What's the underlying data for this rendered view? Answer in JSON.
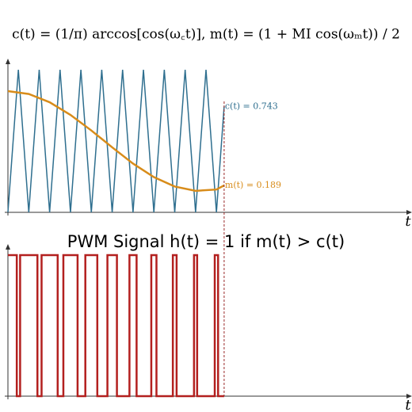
{
  "chart_data": [
    {
      "type": "line",
      "title": "c(t) = (1/π) arccos[cos(ω꜀t)], m(t) = (1 + MI cos(ωₘt)) / 2",
      "xlabel": "t",
      "xlim": [
        0,
        19
      ],
      "ylim": [
        0,
        1
      ],
      "series": [
        {
          "name": "c(t)",
          "color": "#2f6f8f",
          "end_label": "c(t) = 0.743",
          "x": [
            0,
            0.5,
            1,
            1.5,
            2,
            2.5,
            3,
            3.5,
            4,
            4.5,
            5,
            5.5,
            6,
            6.5,
            7,
            7.5,
            8,
            8.5,
            9,
            9.5,
            10,
            10.37
          ],
          "values": [
            0,
            1,
            0,
            1,
            0,
            1,
            0,
            1,
            0,
            1,
            0,
            1,
            0,
            1,
            0,
            1,
            0,
            1,
            0,
            1,
            0,
            0.743
          ]
        },
        {
          "name": "m(t)",
          "color": "#d88c1a",
          "end_label": "m(t) = 0.189",
          "x": [
            0,
            1,
            2,
            3,
            4,
            5,
            6,
            7,
            8,
            9,
            10,
            10.37
          ],
          "values": [
            0.85,
            0.83,
            0.772,
            0.683,
            0.574,
            0.456,
            0.342,
            0.247,
            0.181,
            0.151,
            0.16,
            0.189
          ]
        }
      ]
    },
    {
      "type": "step",
      "title": "PWM Signal h(t) = 1 if m(t) > c(t)",
      "xlabel": "t",
      "xlim": [
        0,
        19
      ],
      "ylim": [
        0,
        1
      ],
      "series": [
        {
          "name": "h(t)",
          "color": "#b3201f",
          "x": [
            0,
            0.425,
            0.425,
            0.585,
            0.585,
            1.415,
            1.415,
            1.614,
            1.614,
            2.386,
            2.386,
            2.659,
            2.659,
            3.341,
            3.341,
            3.713,
            3.713,
            4.287,
            4.287,
            4.772,
            4.772,
            5.228,
            5.228,
            5.829,
            5.829,
            6.171,
            6.171,
            6.876,
            6.876,
            7.124,
            7.124,
            7.91,
            7.91,
            8.09,
            8.09,
            8.925,
            8.925,
            9.075,
            9.075,
            9.92,
            9.92,
            10.08,
            10.08,
            10.37
          ],
          "values": [
            1,
            1,
            0,
            0,
            1,
            1,
            0,
            0,
            1,
            1,
            0,
            0,
            1,
            1,
            0,
            0,
            1,
            1,
            0,
            0,
            1,
            1,
            0,
            0,
            1,
            1,
            0,
            0,
            1,
            1,
            0,
            0,
            1,
            1,
            0,
            0,
            1,
            1,
            0,
            0,
            1,
            1,
            0,
            0
          ]
        }
      ]
    }
  ]
}
